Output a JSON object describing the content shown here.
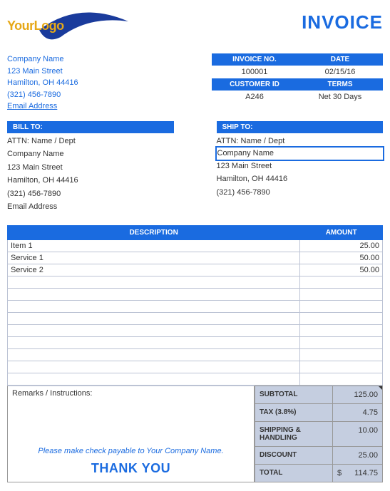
{
  "logo": {
    "text_your": "Your",
    "text_logo": "Logo"
  },
  "title": "INVOICE",
  "company": {
    "name": "Company Name",
    "street": "123 Main Street",
    "city": "Hamilton, OH  44416",
    "phone": "(321) 456-7890",
    "email": "Email Address"
  },
  "meta": {
    "hdr_invoice_no": "INVOICE NO.",
    "hdr_date": "DATE",
    "hdr_customer_id": "CUSTOMER ID",
    "hdr_terms": "TERMS",
    "invoice_no": "100001",
    "date": "02/15/16",
    "customer_id": "A246",
    "terms": "Net 30 Days"
  },
  "bill_to": {
    "hdr": "BILL TO:",
    "attn": "ATTN: Name / Dept",
    "name": "Company Name",
    "street": "123 Main Street",
    "city": "Hamilton, OH  44416",
    "phone": "(321) 456-7890",
    "email": "Email Address"
  },
  "ship_to": {
    "hdr": "SHIP TO:",
    "attn": "ATTN: Name / Dept",
    "name": "Company Name",
    "street": "123 Main Street",
    "city": "Hamilton, OH  44416",
    "phone": "(321) 456-7890"
  },
  "cols": {
    "description": "DESCRIPTION",
    "amount": "AMOUNT"
  },
  "lines": [
    {
      "desc": "Item 1",
      "amt": "25.00"
    },
    {
      "desc": "Service 1",
      "amt": "50.00"
    },
    {
      "desc": "Service 2",
      "amt": "50.00"
    },
    {
      "desc": "",
      "amt": ""
    },
    {
      "desc": "",
      "amt": ""
    },
    {
      "desc": "",
      "amt": ""
    },
    {
      "desc": "",
      "amt": ""
    },
    {
      "desc": "",
      "amt": ""
    },
    {
      "desc": "",
      "amt": ""
    },
    {
      "desc": "",
      "amt": ""
    },
    {
      "desc": "",
      "amt": ""
    },
    {
      "desc": "",
      "amt": ""
    }
  ],
  "remarks_label": "Remarks / Instructions:",
  "payable": "Please make check payable to Your Company Name.",
  "thankyou": "THANK YOU",
  "totals": {
    "subtotal_label": "SUBTOTAL",
    "subtotal": "125.00",
    "tax_label": "TAX (3.8%)",
    "tax": "4.75",
    "ship_label": "SHIPPING & HANDLING",
    "ship": "10.00",
    "discount_label": "DISCOUNT",
    "discount": "25.00",
    "total_label": "TOTAL",
    "total_cur": "$",
    "total": "114.75"
  },
  "colors": {
    "primary": "#1a6be0",
    "totals_bg": "#c5cee0",
    "grid": "#bcc3d4"
  }
}
